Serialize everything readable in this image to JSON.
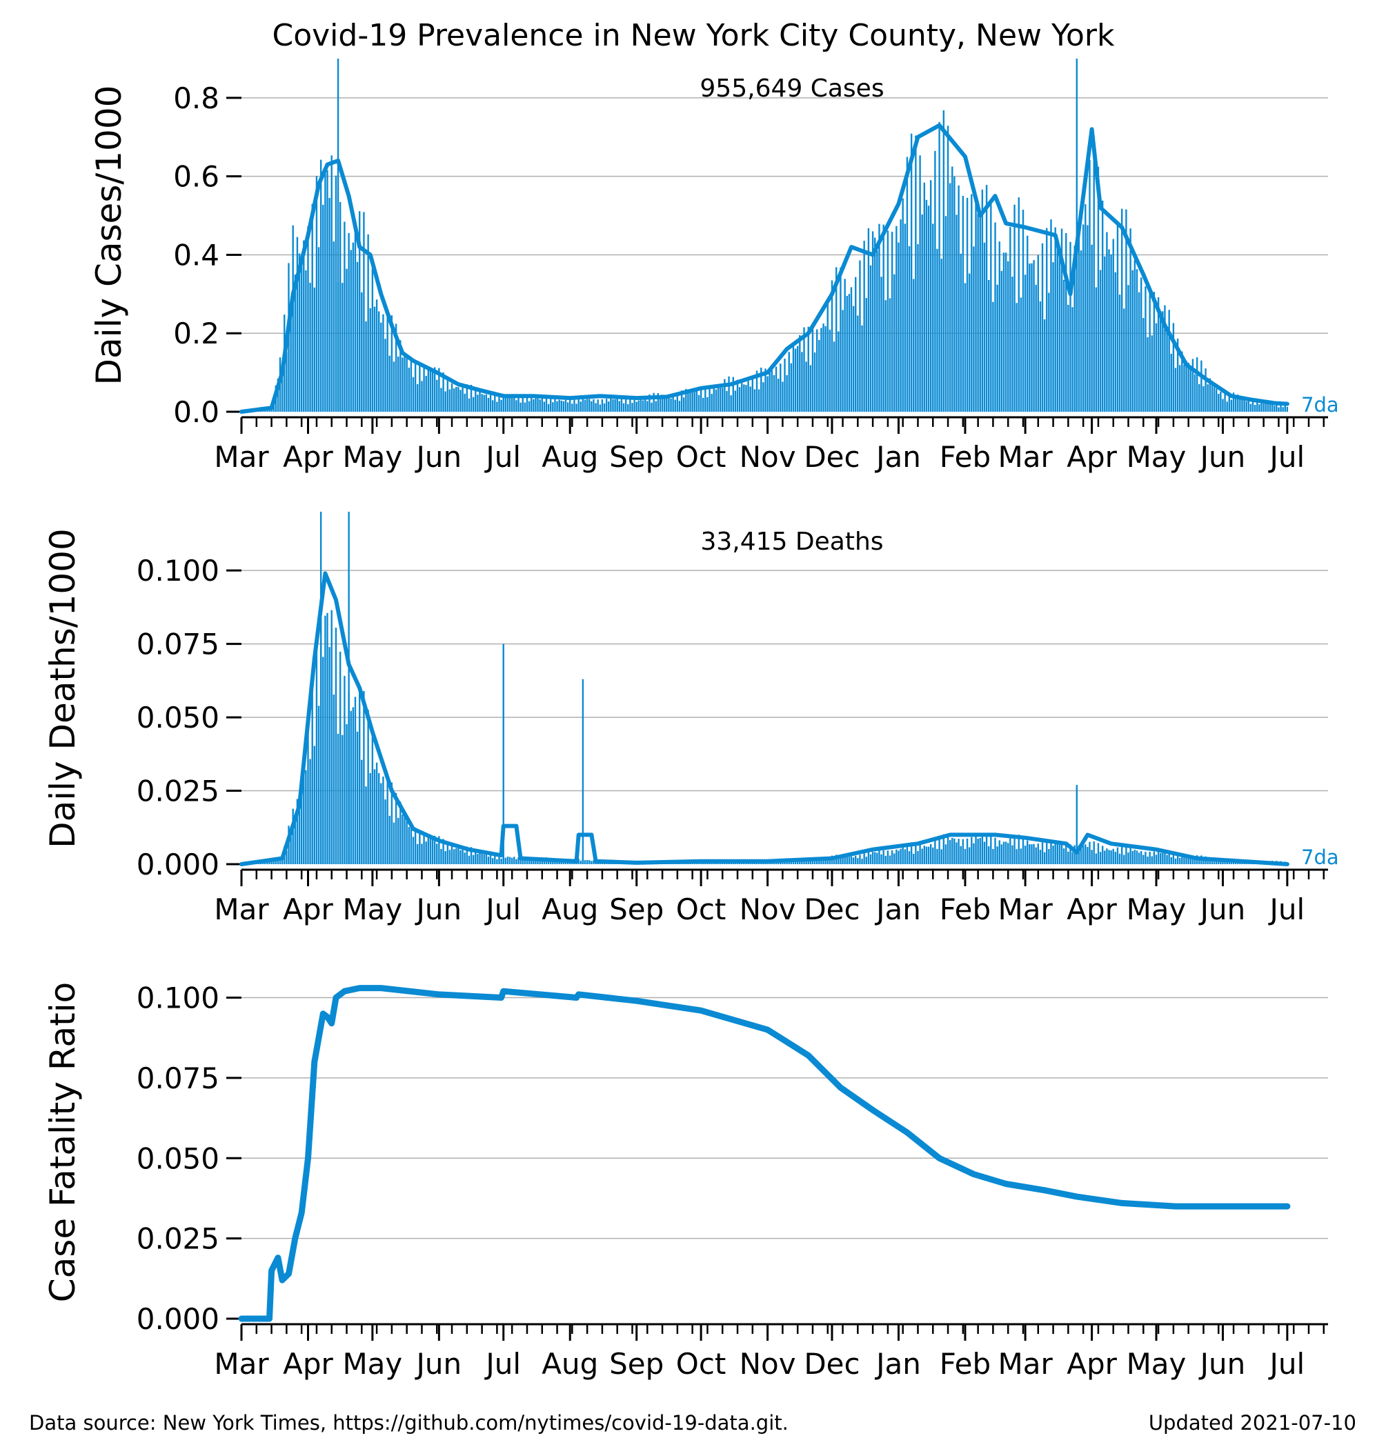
{
  "chart_data": {
    "title": "Covid-19 Prevalence in New York City County, New York",
    "panels": [
      {
        "id": "cases",
        "type": "bar+line",
        "ylabel": "Daily Cases/1000",
        "annotation": "955,649 Cases",
        "series_label": "7da",
        "ylim": [
          0,
          0.9
        ],
        "yticks": [
          "0.0",
          "0.2",
          "0.4",
          "0.6",
          "0.8"
        ],
        "ytick_values": [
          0,
          0.2,
          0.4,
          0.6,
          0.8
        ],
        "grid": true,
        "xlim": [
          "2020-03-01",
          "2021-07-20"
        ],
        "xticks": [
          "Mar",
          "Apr",
          "May",
          "Jun",
          "Jul",
          "Aug",
          "Sep",
          "Oct",
          "Nov",
          "Dec",
          "Jan",
          "Feb",
          "Mar",
          "Apr",
          "May",
          "Jun",
          "Jul"
        ],
        "xtick_dates": [
          "2020-03-01",
          "2020-04-01",
          "2020-05-01",
          "2020-06-01",
          "2020-07-01",
          "2020-08-01",
          "2020-09-01",
          "2020-10-01",
          "2020-11-01",
          "2020-12-01",
          "2021-01-01",
          "2021-02-01",
          "2021-03-01",
          "2021-04-01",
          "2021-05-01",
          "2021-06-01",
          "2021-07-01"
        ],
        "line_7da": [
          [
            "2020-03-01",
            0
          ],
          [
            "2020-03-15",
            0.01
          ],
          [
            "2020-03-20",
            0.1
          ],
          [
            "2020-03-25",
            0.3
          ],
          [
            "2020-04-01",
            0.45
          ],
          [
            "2020-04-06",
            0.58
          ],
          [
            "2020-04-10",
            0.63
          ],
          [
            "2020-04-15",
            0.64
          ],
          [
            "2020-04-20",
            0.55
          ],
          [
            "2020-04-25",
            0.42
          ],
          [
            "2020-04-30",
            0.4
          ],
          [
            "2020-05-05",
            0.3
          ],
          [
            "2020-05-10",
            0.22
          ],
          [
            "2020-05-15",
            0.15
          ],
          [
            "2020-05-20",
            0.13
          ],
          [
            "2020-05-31",
            0.1
          ],
          [
            "2020-06-10",
            0.07
          ],
          [
            "2020-06-20",
            0.055
          ],
          [
            "2020-07-01",
            0.04
          ],
          [
            "2020-07-15",
            0.04
          ],
          [
            "2020-08-01",
            0.035
          ],
          [
            "2020-08-15",
            0.04
          ],
          [
            "2020-09-01",
            0.035
          ],
          [
            "2020-09-15",
            0.038
          ],
          [
            "2020-10-01",
            0.06
          ],
          [
            "2020-10-15",
            0.07
          ],
          [
            "2020-11-01",
            0.1
          ],
          [
            "2020-11-10",
            0.16
          ],
          [
            "2020-11-20",
            0.2
          ],
          [
            "2020-12-01",
            0.3
          ],
          [
            "2020-12-10",
            0.42
          ],
          [
            "2020-12-20",
            0.4
          ],
          [
            "2021-01-01",
            0.53
          ],
          [
            "2021-01-10",
            0.7
          ],
          [
            "2021-01-20",
            0.73
          ],
          [
            "2021-02-01",
            0.65
          ],
          [
            "2021-02-08",
            0.5
          ],
          [
            "2021-02-15",
            0.55
          ],
          [
            "2021-02-20",
            0.48
          ],
          [
            "2021-03-01",
            0.47
          ],
          [
            "2021-03-15",
            0.45
          ],
          [
            "2021-03-22",
            0.3
          ],
          [
            "2021-03-28",
            0.55
          ],
          [
            "2021-04-01",
            0.72
          ],
          [
            "2021-04-05",
            0.52
          ],
          [
            "2021-04-15",
            0.47
          ],
          [
            "2021-04-25",
            0.35
          ],
          [
            "2021-05-05",
            0.22
          ],
          [
            "2021-05-15",
            0.12
          ],
          [
            "2021-05-25",
            0.08
          ],
          [
            "2021-06-05",
            0.04
          ],
          [
            "2021-06-15",
            0.03
          ],
          [
            "2021-06-25",
            0.022
          ],
          [
            "2021-07-01",
            0.02
          ]
        ],
        "bar_envelope": [
          [
            "2020-03-01",
            0
          ],
          [
            "2020-03-15",
            0.02
          ],
          [
            "2020-03-20",
            0.2
          ],
          [
            "2020-03-25",
            0.5
          ],
          [
            "2020-04-01",
            0.62
          ],
          [
            "2020-04-06",
            0.7
          ],
          [
            "2020-04-12",
            0.73
          ],
          [
            "2020-04-20",
            0.6
          ],
          [
            "2020-04-28",
            0.5
          ],
          [
            "2020-05-05",
            0.35
          ],
          [
            "2020-05-15",
            0.18
          ],
          [
            "2020-05-31",
            0.12
          ],
          [
            "2020-06-15",
            0.07
          ],
          [
            "2020-07-01",
            0.05
          ],
          [
            "2020-08-01",
            0.04
          ],
          [
            "2020-09-01",
            0.04
          ],
          [
            "2020-10-01",
            0.07
          ],
          [
            "2020-11-01",
            0.12
          ],
          [
            "2020-11-20",
            0.24
          ],
          [
            "2020-12-01",
            0.35
          ],
          [
            "2020-12-15",
            0.48
          ],
          [
            "2021-01-01",
            0.62
          ],
          [
            "2021-01-12",
            0.8
          ],
          [
            "2021-01-25",
            0.78
          ],
          [
            "2021-02-05",
            0.65
          ],
          [
            "2021-02-20",
            0.56
          ],
          [
            "2021-03-10",
            0.52
          ],
          [
            "2021-03-25",
            0.55
          ],
          [
            "2021-04-01",
            0.7
          ],
          [
            "2021-04-15",
            0.55
          ],
          [
            "2021-05-01",
            0.35
          ],
          [
            "2021-05-15",
            0.18
          ],
          [
            "2021-06-01",
            0.06
          ],
          [
            "2021-06-20",
            0.03
          ],
          [
            "2021-07-01",
            0.02
          ]
        ],
        "spikes": [
          [
            "2020-04-15",
            0.9
          ],
          [
            "2021-03-25",
            0.9
          ]
        ]
      },
      {
        "id": "deaths",
        "type": "bar+line",
        "ylabel": "Daily Deaths/1000",
        "annotation": "33,415 Deaths",
        "series_label": "7da",
        "ylim": [
          0,
          0.12
        ],
        "yticks": [
          "0.000",
          "0.025",
          "0.050",
          "0.075",
          "0.100"
        ],
        "ytick_values": [
          0,
          0.025,
          0.05,
          0.075,
          0.1
        ],
        "grid": true,
        "xlim": [
          "2020-03-01",
          "2021-07-20"
        ],
        "xticks": [
          "Mar",
          "Apr",
          "May",
          "Jun",
          "Jul",
          "Aug",
          "Sep",
          "Oct",
          "Nov",
          "Dec",
          "Jan",
          "Feb",
          "Mar",
          "Apr",
          "May",
          "Jun",
          "Jul"
        ],
        "xtick_dates": [
          "2020-03-01",
          "2020-04-01",
          "2020-05-01",
          "2020-06-01",
          "2020-07-01",
          "2020-08-01",
          "2020-09-01",
          "2020-10-01",
          "2020-11-01",
          "2020-12-01",
          "2021-01-01",
          "2021-02-01",
          "2021-03-01",
          "2021-04-01",
          "2021-05-01",
          "2021-06-01",
          "2021-07-01"
        ],
        "line_7da": [
          [
            "2020-03-01",
            0
          ],
          [
            "2020-03-20",
            0.002
          ],
          [
            "2020-03-28",
            0.02
          ],
          [
            "2020-04-04",
            0.07
          ],
          [
            "2020-04-09",
            0.099
          ],
          [
            "2020-04-14",
            0.09
          ],
          [
            "2020-04-20",
            0.068
          ],
          [
            "2020-04-25",
            0.06
          ],
          [
            "2020-05-01",
            0.045
          ],
          [
            "2020-05-10",
            0.025
          ],
          [
            "2020-05-20",
            0.012
          ],
          [
            "2020-06-01",
            0.008
          ],
          [
            "2020-06-15",
            0.005
          ],
          [
            "2020-06-30",
            0.003
          ],
          [
            "2020-07-01",
            0.013
          ],
          [
            "2020-07-07",
            0.013
          ],
          [
            "2020-07-09",
            0.002
          ],
          [
            "2020-08-04",
            0.001
          ],
          [
            "2020-08-05",
            0.01
          ],
          [
            "2020-08-11",
            0.01
          ],
          [
            "2020-08-13",
            0.001
          ],
          [
            "2020-09-01",
            0.0005
          ],
          [
            "2020-10-01",
            0.001
          ],
          [
            "2020-11-01",
            0.001
          ],
          [
            "2020-12-01",
            0.002
          ],
          [
            "2020-12-20",
            0.005
          ],
          [
            "2021-01-10",
            0.007
          ],
          [
            "2021-01-25",
            0.01
          ],
          [
            "2021-02-15",
            0.01
          ],
          [
            "2021-03-01",
            0.009
          ],
          [
            "2021-03-20",
            0.007
          ],
          [
            "2021-03-25",
            0.004
          ],
          [
            "2021-03-30",
            0.01
          ],
          [
            "2021-04-10",
            0.007
          ],
          [
            "2021-05-01",
            0.005
          ],
          [
            "2021-05-20",
            0.002
          ],
          [
            "2021-06-10",
            0.001
          ],
          [
            "2021-07-01",
            0
          ]
        ],
        "bar_envelope": [
          [
            "2020-03-01",
            0
          ],
          [
            "2020-03-20",
            0.003
          ],
          [
            "2020-03-28",
            0.03
          ],
          [
            "2020-04-04",
            0.085
          ],
          [
            "2020-04-10",
            0.1
          ],
          [
            "2020-04-16",
            0.09
          ],
          [
            "2020-04-24",
            0.065
          ],
          [
            "2020-05-02",
            0.05
          ],
          [
            "2020-05-12",
            0.025
          ],
          [
            "2020-05-25",
            0.012
          ],
          [
            "2020-06-15",
            0.006
          ],
          [
            "2020-07-01",
            0.003
          ],
          [
            "2020-08-01",
            0.002
          ],
          [
            "2020-09-01",
            0.001
          ],
          [
            "2020-11-01",
            0.001
          ],
          [
            "2020-12-15",
            0.004
          ],
          [
            "2021-01-10",
            0.008
          ],
          [
            "2021-01-25",
            0.011
          ],
          [
            "2021-02-15",
            0.011
          ],
          [
            "2021-03-10",
            0.009
          ],
          [
            "2021-04-01",
            0.008
          ],
          [
            "2021-05-01",
            0.005
          ],
          [
            "2021-06-01",
            0.002
          ],
          [
            "2021-07-01",
            0.001
          ]
        ],
        "spikes": [
          [
            "2020-04-07",
            0.12
          ],
          [
            "2020-04-20",
            0.12
          ],
          [
            "2020-07-01",
            0.075
          ],
          [
            "2020-08-07",
            0.063
          ],
          [
            "2021-03-25",
            0.027
          ]
        ]
      },
      {
        "id": "cfr",
        "type": "line",
        "ylabel": "Case Fatality Ratio",
        "ylim": [
          0,
          0.11
        ],
        "yticks": [
          "0.000",
          "0.025",
          "0.050",
          "0.075",
          "0.100"
        ],
        "ytick_values": [
          0,
          0.025,
          0.05,
          0.075,
          0.1
        ],
        "grid": true,
        "xlim": [
          "2020-03-01",
          "2021-07-20"
        ],
        "xticks": [
          "Mar",
          "Apr",
          "May",
          "Jun",
          "Jul",
          "Aug",
          "Sep",
          "Oct",
          "Nov",
          "Dec",
          "Jan",
          "Feb",
          "Mar",
          "Apr",
          "May",
          "Jun",
          "Jul"
        ],
        "xtick_dates": [
          "2020-03-01",
          "2020-04-01",
          "2020-05-01",
          "2020-06-01",
          "2020-07-01",
          "2020-08-01",
          "2020-09-01",
          "2020-10-01",
          "2020-11-01",
          "2020-12-01",
          "2021-01-01",
          "2021-02-01",
          "2021-03-01",
          "2021-04-01",
          "2021-05-01",
          "2021-06-01",
          "2021-07-01"
        ],
        "line": [
          [
            "2020-03-01",
            0
          ],
          [
            "2020-03-14",
            0
          ],
          [
            "2020-03-15",
            0.015
          ],
          [
            "2020-03-18",
            0.019
          ],
          [
            "2020-03-20",
            0.012
          ],
          [
            "2020-03-23",
            0.014
          ],
          [
            "2020-03-26",
            0.025
          ],
          [
            "2020-03-29",
            0.033
          ],
          [
            "2020-04-01",
            0.05
          ],
          [
            "2020-04-04",
            0.08
          ],
          [
            "2020-04-08",
            0.095
          ],
          [
            "2020-04-10",
            0.094
          ],
          [
            "2020-04-12",
            0.092
          ],
          [
            "2020-04-14",
            0.1
          ],
          [
            "2020-04-18",
            0.102
          ],
          [
            "2020-04-25",
            0.103
          ],
          [
            "2020-05-05",
            0.103
          ],
          [
            "2020-06-01",
            0.101
          ],
          [
            "2020-06-30",
            0.1
          ],
          [
            "2020-07-01",
            0.102
          ],
          [
            "2020-08-04",
            0.1
          ],
          [
            "2020-08-05",
            0.101
          ],
          [
            "2020-09-01",
            0.099
          ],
          [
            "2020-10-01",
            0.096
          ],
          [
            "2020-11-01",
            0.09
          ],
          [
            "2020-11-20",
            0.082
          ],
          [
            "2020-12-05",
            0.072
          ],
          [
            "2020-12-20",
            0.065
          ],
          [
            "2021-01-05",
            0.058
          ],
          [
            "2021-01-20",
            0.05
          ],
          [
            "2021-02-05",
            0.045
          ],
          [
            "2021-02-20",
            0.042
          ],
          [
            "2021-03-10",
            0.04
          ],
          [
            "2021-03-25",
            0.038
          ],
          [
            "2021-04-15",
            0.036
          ],
          [
            "2021-05-10",
            0.035
          ],
          [
            "2021-07-01",
            0.035
          ]
        ]
      }
    ]
  },
  "footer": {
    "source": "Data source: New York Times, https://github.com/nytimes/covid-19-data.git.",
    "updated": "Updated 2021-07-10"
  },
  "colors": {
    "series": "#0a8ad3",
    "grid": "#b0b0b0",
    "axis": "#000000"
  }
}
